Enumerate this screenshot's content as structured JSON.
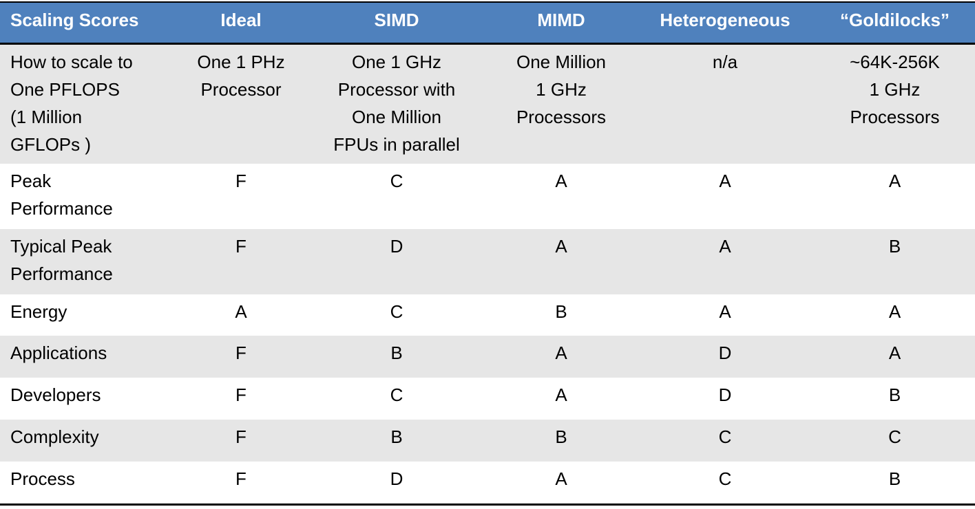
{
  "table": {
    "header": [
      "Scaling Scores",
      "Ideal",
      "SIMD",
      "MIMD",
      "Heterogeneous",
      "“Goldilocks”"
    ],
    "rows": [
      [
        "How to scale to\nOne PFLOPS\n(1 Million\nGFLOPs )",
        "One 1 PHz\nProcessor",
        "One 1 GHz\nProcessor with\nOne Million\nFPUs in parallel",
        "One Million\n1 GHz\nProcessors",
        "n/a",
        "~64K-256K\n1 GHz\nProcessors"
      ],
      [
        "Peak\nPerformance",
        "F",
        "C",
        "A",
        "A",
        "A"
      ],
      [
        "Typical Peak\nPerformance",
        "F",
        "D",
        "A",
        "A",
        "B"
      ],
      [
        "Energy",
        "A",
        "C",
        "B",
        "A",
        "A"
      ],
      [
        "Applications",
        "F",
        "B",
        "A",
        "D",
        "A"
      ],
      [
        "Developers",
        "F",
        "C",
        "A",
        "D",
        "B"
      ],
      [
        "Complexity",
        "F",
        "B",
        "B",
        "C",
        "C"
      ],
      [
        "Process",
        "F",
        "D",
        "A",
        "C",
        "B"
      ]
    ]
  }
}
